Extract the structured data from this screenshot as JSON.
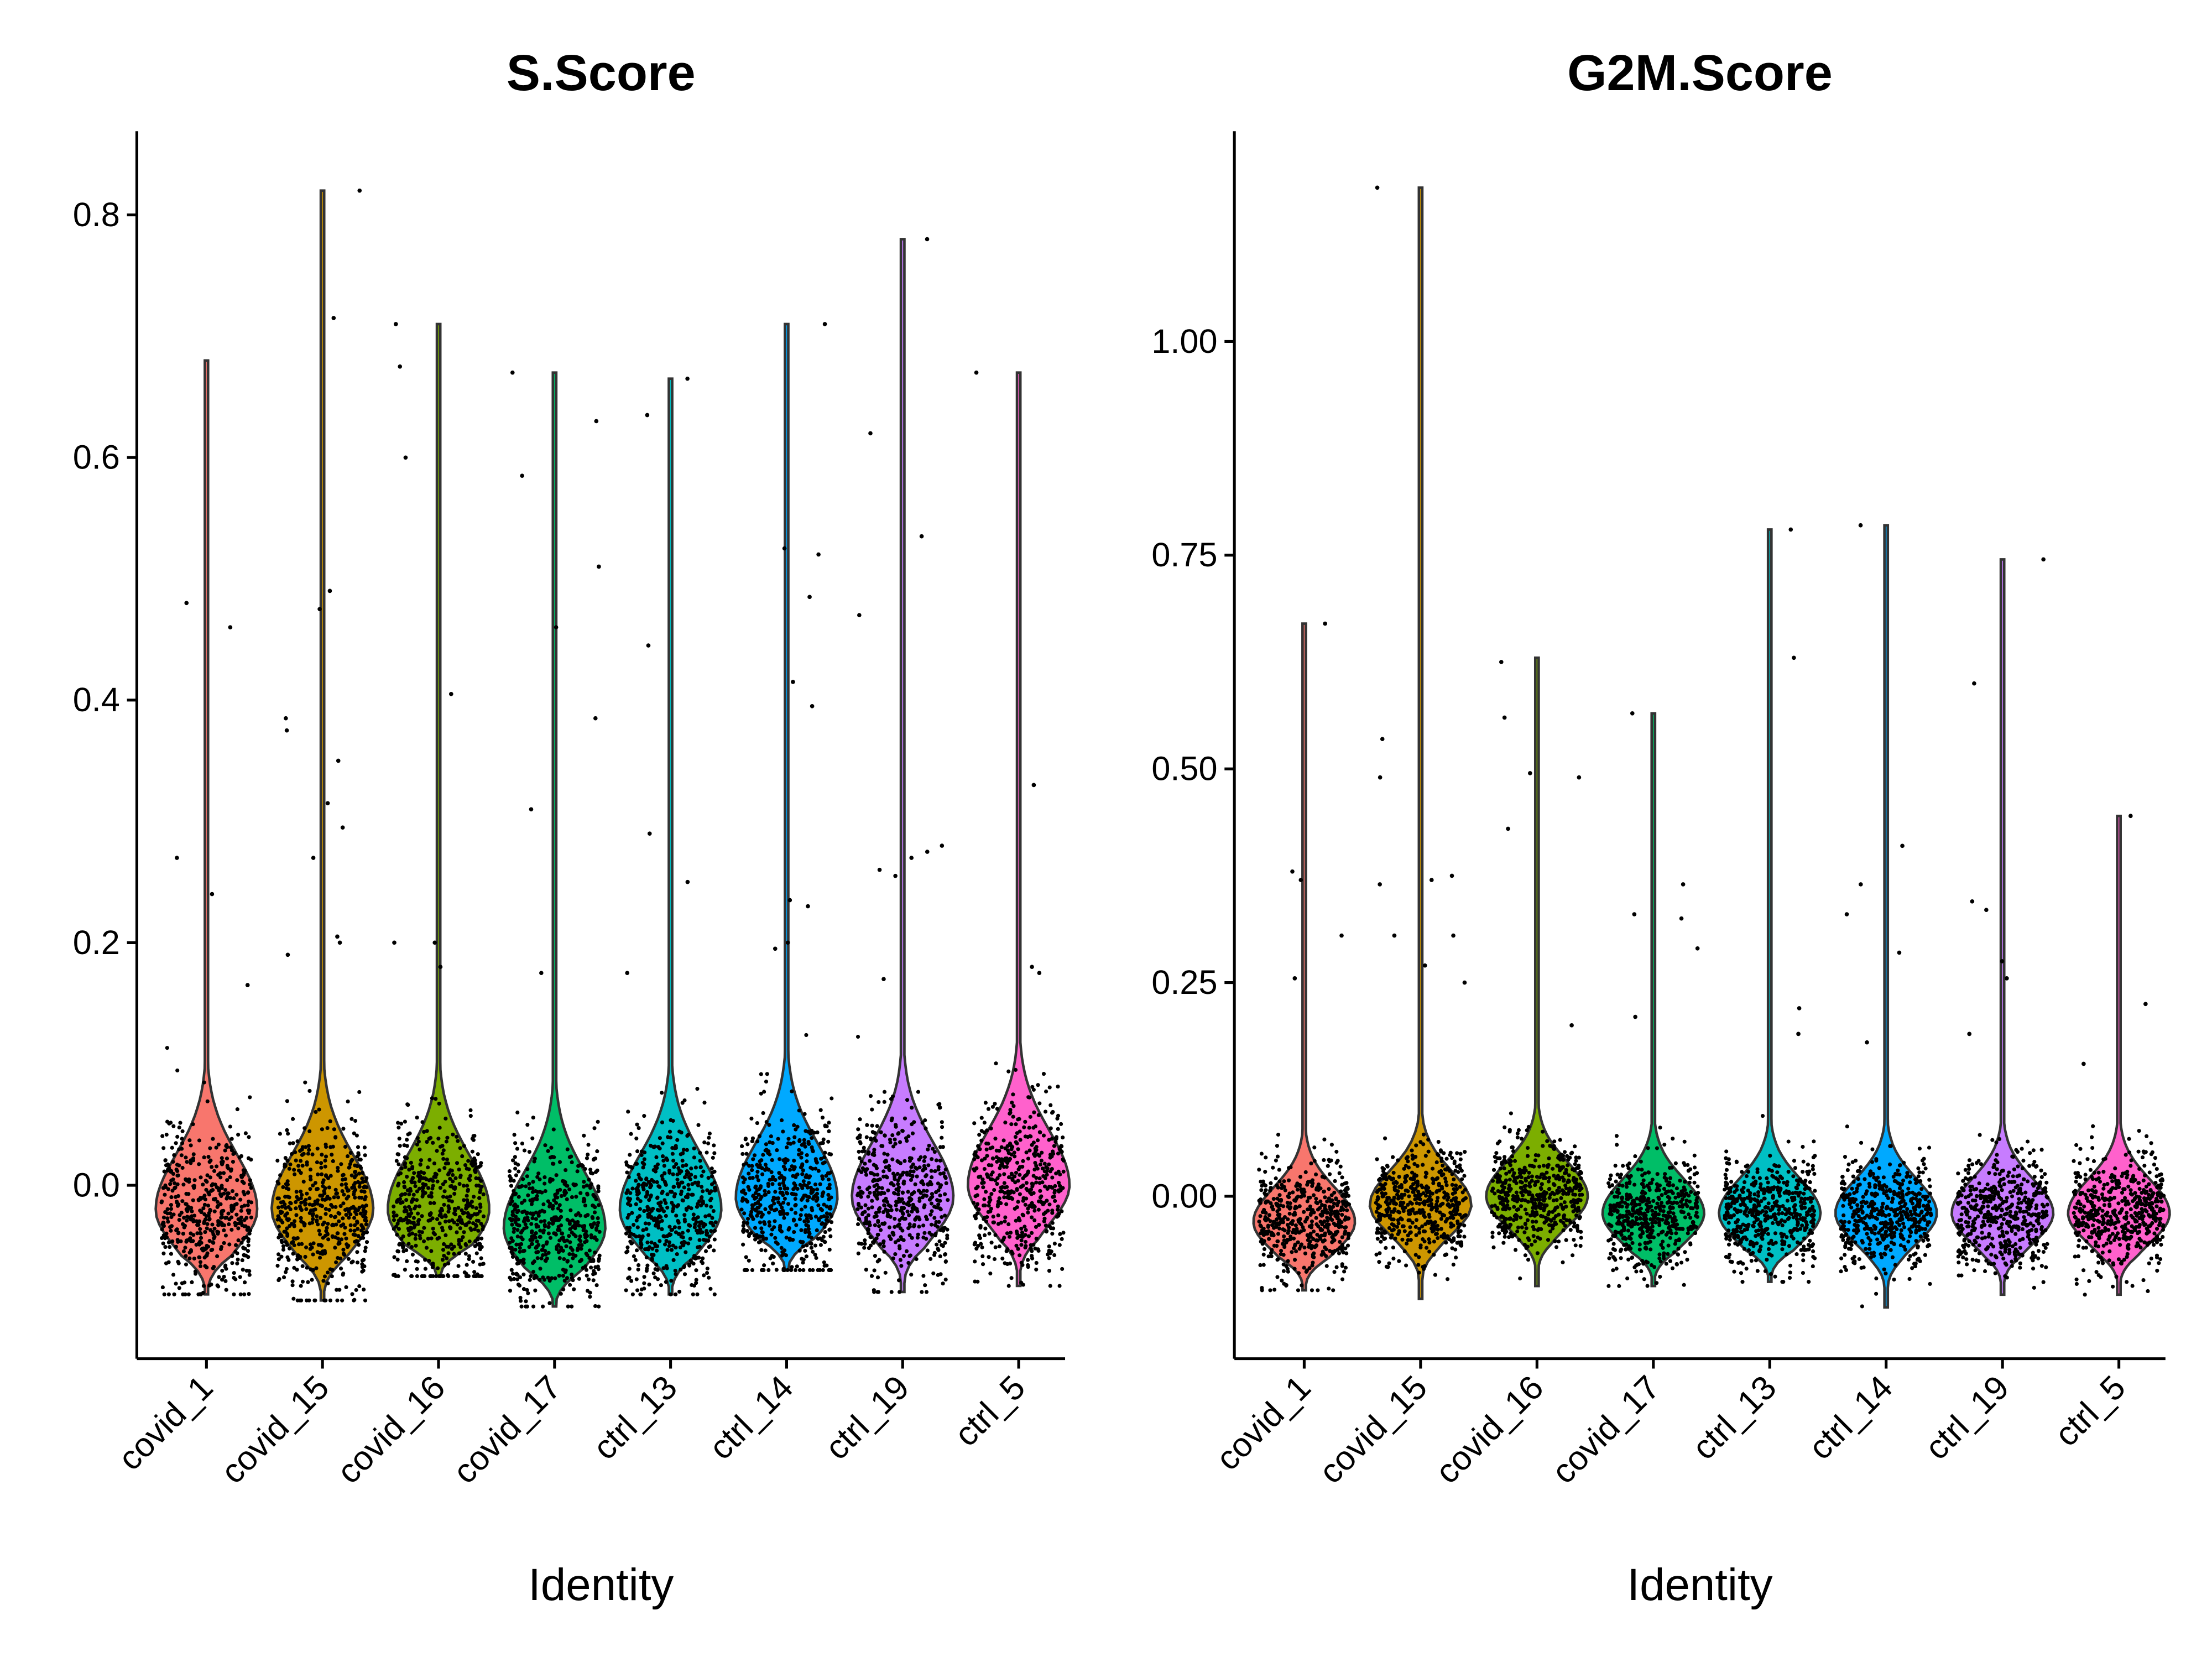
{
  "chart_data": [
    {
      "type": "violin",
      "title": "S.Score",
      "xlabel": "Identity",
      "ylabel": "",
      "ylim": [
        -0.143,
        0.869
      ],
      "yticks": [
        0.0,
        0.2,
        0.4,
        0.6,
        0.8
      ],
      "ytick_labels": [
        "0.0",
        "0.2",
        "0.4",
        "0.6",
        "0.8"
      ],
      "categories": [
        "covid_1",
        "covid_15",
        "covid_16",
        "covid_17",
        "ctrl_13",
        "ctrl_14",
        "ctrl_19",
        "ctrl_5"
      ],
      "colors": [
        "#F8766D",
        "#CD9600",
        "#7CAE00",
        "#00BE67",
        "#00BFC4",
        "#00A9FF",
        "#C77CFF",
        "#FF61CC"
      ],
      "groups": [
        {
          "min": -0.09,
          "max": 0.68,
          "mode": -0.02,
          "outliers": [
            0.27,
            0.46,
            0.48,
            0.24,
            0.165
          ]
        },
        {
          "min": -0.095,
          "max": 0.82,
          "mode": -0.02,
          "outliers": [
            0.82,
            0.715,
            0.49,
            0.475,
            0.385,
            0.375,
            0.35,
            0.315,
            0.295,
            0.27,
            0.205,
            0.2,
            0.19
          ]
        },
        {
          "min": -0.075,
          "max": 0.71,
          "mode": -0.02,
          "outliers": [
            0.71,
            0.675,
            0.6,
            0.405,
            0.2,
            0.2,
            0.18
          ]
        },
        {
          "min": -0.1,
          "max": 0.67,
          "mode": -0.035,
          "outliers": [
            0.67,
            0.63,
            0.585,
            0.51,
            0.46,
            0.385,
            0.31,
            0.175
          ]
        },
        {
          "min": -0.09,
          "max": 0.665,
          "mode": -0.02,
          "outliers": [
            0.665,
            0.635,
            0.445,
            0.29,
            0.25,
            0.175
          ]
        },
        {
          "min": -0.07,
          "max": 0.71,
          "mode": -0.01,
          "outliers": [
            0.71,
            0.525,
            0.52,
            0.485,
            0.415,
            0.395,
            0.235,
            0.23,
            0.2,
            0.195
          ]
        },
        {
          "min": -0.088,
          "max": 0.78,
          "mode": -0.01,
          "outliers": [
            0.78,
            0.62,
            0.535,
            0.47,
            0.28,
            0.275,
            0.27,
            0.26,
            0.255,
            0.17
          ]
        },
        {
          "min": -0.083,
          "max": 0.67,
          "mode": 0.0,
          "outliers": [
            0.67,
            0.33,
            0.18,
            0.175
          ]
        }
      ]
    },
    {
      "type": "violin",
      "title": "G2M.Score",
      "xlabel": "Identity",
      "ylabel": "",
      "ylim": [
        -0.19,
        1.246
      ],
      "yticks": [
        0.0,
        0.25,
        0.5,
        0.75,
        1.0
      ],
      "ytick_labels": [
        "0.00",
        "0.25",
        "0.50",
        "0.75",
        "1.00"
      ],
      "categories": [
        "covid_1",
        "covid_15",
        "covid_16",
        "covid_17",
        "ctrl_13",
        "ctrl_14",
        "ctrl_19",
        "ctrl_5"
      ],
      "colors": [
        "#F8766D",
        "#CD9600",
        "#7CAE00",
        "#00BE67",
        "#00BFC4",
        "#00A9FF",
        "#C77CFF",
        "#FF61CC"
      ],
      "groups": [
        {
          "min": -0.11,
          "max": 0.67,
          "mode": -0.03,
          "outliers": [
            0.67,
            0.38,
            0.37,
            0.305,
            0.255
          ]
        },
        {
          "min": -0.12,
          "max": 1.18,
          "mode": -0.01,
          "outliers": [
            1.18,
            0.535,
            0.49,
            0.375,
            0.37,
            0.365,
            0.305,
            0.305,
            0.27,
            0.25
          ]
        },
        {
          "min": -0.105,
          "max": 0.63,
          "mode": 0.0,
          "outliers": [
            0.625,
            0.56,
            0.495,
            0.49,
            0.43,
            0.2
          ]
        },
        {
          "min": -0.105,
          "max": 0.565,
          "mode": -0.02,
          "outliers": [
            0.565,
            0.365,
            0.33,
            0.325,
            0.29,
            0.21
          ]
        },
        {
          "min": -0.1,
          "max": 0.78,
          "mode": -0.02,
          "outliers": [
            0.78,
            0.63,
            0.22,
            0.19
          ]
        },
        {
          "min": -0.13,
          "max": 0.785,
          "mode": -0.02,
          "outliers": [
            0.785,
            0.41,
            0.365,
            0.33,
            0.285,
            0.18
          ]
        },
        {
          "min": -0.115,
          "max": 0.745,
          "mode": -0.02,
          "outliers": [
            0.745,
            0.6,
            0.345,
            0.335,
            0.275,
            0.255,
            0.19
          ]
        },
        {
          "min": -0.115,
          "max": 0.445,
          "mode": -0.02,
          "outliers": [
            0.445,
            0.225,
            0.155
          ]
        }
      ]
    }
  ]
}
